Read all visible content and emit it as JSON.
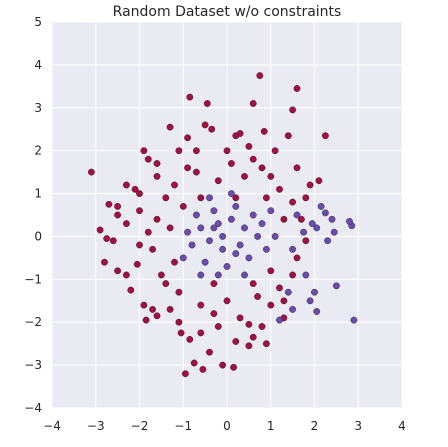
{
  "chart_data": {
    "type": "scatter",
    "title": "Random Dataset w/o constraints",
    "xlabel": "",
    "ylabel": "",
    "xlim": [
      -4,
      4
    ],
    "ylim": [
      -4,
      5
    ],
    "xticks": [
      "−4",
      "−3",
      "−2",
      "−1",
      "0",
      "1",
      "2",
      "3",
      "4"
    ],
    "yticks": [
      "−4",
      "−3",
      "−2",
      "−1",
      "0",
      "1",
      "2",
      "3",
      "4",
      "5"
    ],
    "grid": true,
    "legend": "none",
    "colors": {
      "background": "#EAEAF2",
      "grid": "#ffffff",
      "class_outer": "#A50D45",
      "class_inner": "#6A4BB2",
      "edge": "#1a1a1a"
    },
    "series": [
      {
        "color": "#A50D45",
        "points": [
          [
            -3.1,
            1.5
          ],
          [
            0.75,
            3.75
          ],
          [
            1.6,
            3.45
          ],
          [
            -0.85,
            3.25
          ],
          [
            -0.45,
            3.1
          ],
          [
            0.6,
            3.1
          ],
          [
            1.5,
            2.95
          ],
          [
            -1.3,
            2.55
          ],
          [
            -0.5,
            2.6
          ],
          [
            -0.35,
            2.5
          ],
          [
            0.2,
            2.35
          ],
          [
            0.3,
            2.4
          ],
          [
            0.85,
            2.45
          ],
          [
            2.25,
            2.35
          ],
          [
            -0.9,
            2.3
          ],
          [
            1.4,
            2.35
          ],
          [
            -1.9,
            2.0
          ],
          [
            -1.8,
            1.8
          ],
          [
            -1.1,
            2.0
          ],
          [
            0.0,
            2.0
          ],
          [
            0.5,
            2.1
          ],
          [
            1.1,
            2.0
          ],
          [
            -1.6,
            1.4
          ],
          [
            -2.1,
            1.1
          ],
          [
            -2.0,
            1.0
          ],
          [
            2.1,
            1.3
          ],
          [
            1.9,
            1.2
          ],
          [
            -2.5,
            0.7
          ],
          [
            -2.7,
            0.75
          ],
          [
            -2.5,
            0.5
          ],
          [
            -2.3,
            0.3
          ],
          [
            -2.9,
            0.15
          ],
          [
            -2.75,
            -0.05
          ],
          [
            -2.6,
            -0.1
          ],
          [
            -2.8,
            -0.6
          ],
          [
            -2.5,
            -0.8
          ],
          [
            -2.3,
            -0.9
          ],
          [
            -2.05,
            -0.65
          ],
          [
            -2.2,
            -1.25
          ],
          [
            -1.9,
            -1.6
          ],
          [
            -1.7,
            -1.7
          ],
          [
            -1.85,
            -1.95
          ],
          [
            -1.6,
            -1.85
          ],
          [
            -1.1,
            -2.0
          ],
          [
            -1.05,
            -2.25
          ],
          [
            -0.85,
            -2.4
          ],
          [
            -0.6,
            -2.25
          ],
          [
            -0.2,
            -2.1
          ],
          [
            0.3,
            -1.9
          ],
          [
            0.5,
            -2.05
          ],
          [
            0.8,
            -2.1
          ],
          [
            0.6,
            -2.35
          ],
          [
            0.9,
            -2.5
          ],
          [
            0.5,
            -2.55
          ],
          [
            0.2,
            -2.45
          ],
          [
            -0.4,
            -2.7
          ],
          [
            -0.75,
            -2.95
          ],
          [
            -0.55,
            -3.1
          ],
          [
            -0.1,
            -3.0
          ],
          [
            0.15,
            -3.05
          ],
          [
            -0.95,
            -3.2
          ],
          [
            1.0,
            -1.6
          ],
          [
            1.3,
            -1.9
          ],
          [
            -1.6,
            0.4
          ],
          [
            -1.4,
            0.9
          ],
          [
            -1.2,
            1.2
          ],
          [
            -0.7,
            1.5
          ],
          [
            -0.2,
            1.3
          ],
          [
            0.4,
            1.4
          ],
          [
            0.8,
            1.6
          ],
          [
            1.2,
            1.1
          ],
          [
            1.5,
            0.8
          ],
          [
            1.7,
            0.4
          ],
          [
            1.6,
            -0.5
          ],
          [
            1.5,
            -0.9
          ],
          [
            1.2,
            -1.2
          ],
          [
            0.7,
            -1.4
          ],
          [
            0.0,
            -1.5
          ],
          [
            -0.6,
            -1.6
          ],
          [
            -1.1,
            -1.3
          ],
          [
            -1.5,
            -0.9
          ],
          [
            -1.7,
            -0.3
          ],
          [
            -1.8,
            0.1
          ],
          [
            -1.0,
            0.7
          ],
          [
            -0.6,
            0.9
          ],
          [
            0.2,
            0.9
          ],
          [
            0.9,
            0.9
          ],
          [
            1.3,
            0.4
          ],
          [
            1.0,
            -0.8
          ],
          [
            -0.3,
            -1.1
          ],
          [
            -1.2,
            -0.6
          ],
          [
            -1.3,
            0.2
          ],
          [
            -0.9,
            1.6
          ],
          [
            0.1,
            1.7
          ],
          [
            1.0,
            1.4
          ],
          [
            1.8,
            -0.1
          ],
          [
            -2.0,
            -0.2
          ],
          [
            -1.4,
            -1.1
          ],
          [
            0.6,
            -1.1
          ],
          [
            -2.3,
            1.2
          ],
          [
            -1.6,
            1.7
          ],
          [
            -0.7,
            2.0
          ],
          [
            0.6,
            1.8
          ],
          [
            1.6,
            1.6
          ],
          [
            1.8,
            0.9
          ],
          [
            1.3,
            -1.5
          ],
          [
            -0.3,
            -1.8
          ],
          [
            -1.3,
            -1.7
          ],
          [
            -2.0,
            0.6
          ]
        ]
      },
      {
        "color": "#6A4BB2",
        "points": [
          [
            2.9,
            -1.95
          ],
          [
            2.5,
            -1.15
          ],
          [
            2.85,
            0.25
          ],
          [
            2.8,
            0.35
          ],
          [
            2.4,
            0.4
          ],
          [
            2.45,
            0.1
          ],
          [
            2.25,
            0.55
          ],
          [
            2.15,
            0.7
          ],
          [
            2.05,
            0.2
          ],
          [
            2.3,
            -0.1
          ],
          [
            1.95,
            0.3
          ],
          [
            1.8,
            -0.9
          ],
          [
            2.0,
            -1.3
          ],
          [
            2.05,
            -1.75
          ],
          [
            1.9,
            -1.5
          ],
          [
            1.5,
            -1.7
          ],
          [
            1.4,
            -1.3
          ],
          [
            1.2,
            -1.95
          ],
          [
            1.5,
            -0.3
          ],
          [
            1.75,
            0.1
          ],
          [
            1.6,
            0.5
          ],
          [
            -0.2,
            0.3
          ],
          [
            0.1,
            0.4
          ],
          [
            0.4,
            0.2
          ],
          [
            0.3,
            -0.2
          ],
          [
            -0.1,
            -0.3
          ],
          [
            -0.4,
            -0.1
          ],
          [
            -0.6,
            0.2
          ],
          [
            -0.3,
            0.6
          ],
          [
            0.2,
            0.7
          ],
          [
            0.6,
            0.5
          ],
          [
            0.7,
            0.0
          ],
          [
            0.5,
            -0.5
          ],
          [
            0.0,
            -0.7
          ],
          [
            -0.5,
            -0.6
          ],
          [
            -0.8,
            -0.2
          ],
          [
            -0.7,
            0.5
          ],
          [
            -0.1,
            0.0
          ],
          [
            0.2,
            -0.4
          ],
          [
            -0.3,
            0.2
          ],
          [
            0.9,
            -0.3
          ],
          [
            0.4,
            -0.9
          ],
          [
            -0.2,
            -0.9
          ],
          [
            -0.9,
            0.1
          ],
          [
            -0.6,
            -0.9
          ],
          [
            0.8,
            0.3
          ],
          [
            1.1,
            0.0
          ],
          [
            1.0,
            0.6
          ],
          [
            -1.0,
            -0.5
          ],
          [
            0.1,
            1.0
          ],
          [
            -0.4,
            0.9
          ]
        ]
      }
    ]
  }
}
